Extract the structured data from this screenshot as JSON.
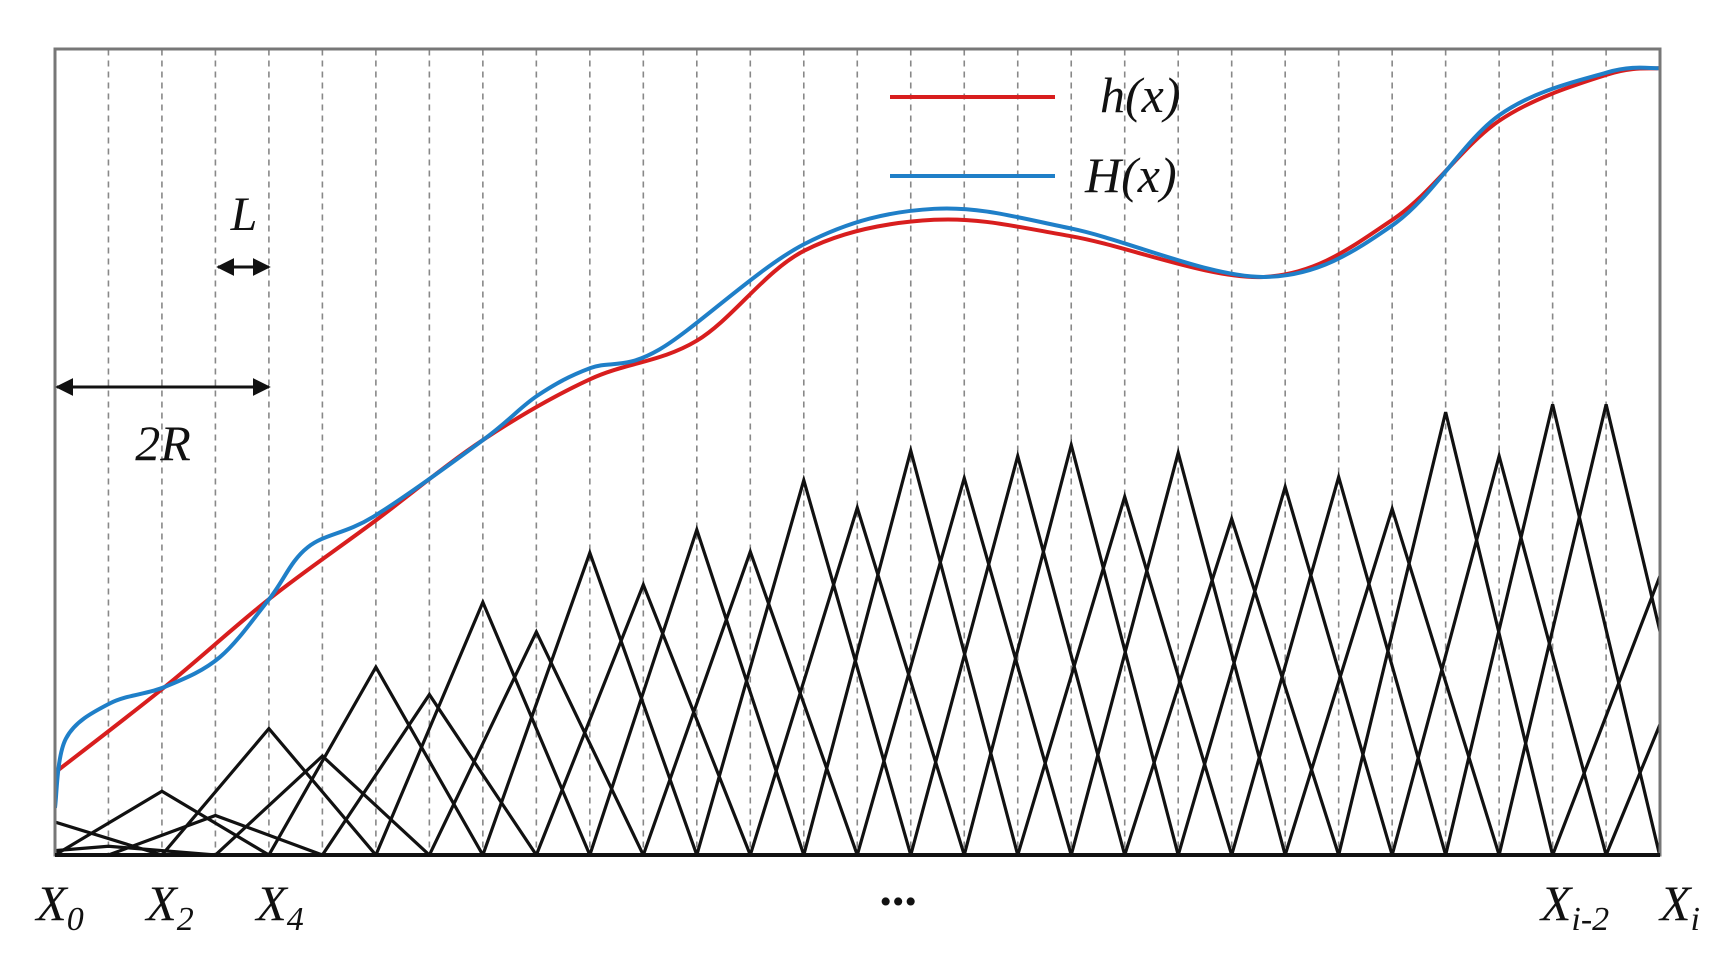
{
  "legend": [
    {
      "label": "h(x)"
    },
    {
      "label": "H(x)"
    }
  ],
  "annotations": {
    "spacing": "L",
    "support": "2R"
  },
  "x_labels": [
    {
      "base": "X",
      "sub": "0"
    },
    {
      "base": "X",
      "sub": "2"
    },
    {
      "base": "X",
      "sub": "4"
    },
    {
      "base": "X",
      "sub": "i-2"
    },
    {
      "base": "X",
      "sub": "i"
    }
  ],
  "ellipsis": "..."
}
